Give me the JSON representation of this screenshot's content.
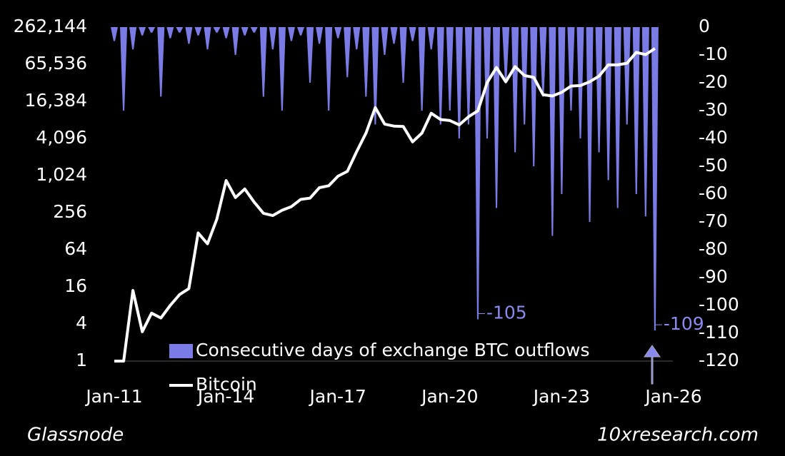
{
  "chart_data": {
    "type": "line",
    "x": [
      "2011-01",
      "2011-04",
      "2011-07",
      "2011-10",
      "2012-01",
      "2012-04",
      "2012-07",
      "2012-10",
      "2013-01",
      "2013-04",
      "2013-07",
      "2013-10",
      "2014-01",
      "2014-04",
      "2014-07",
      "2014-10",
      "2015-01",
      "2015-04",
      "2015-07",
      "2015-10",
      "2016-01",
      "2016-04",
      "2016-07",
      "2016-10",
      "2017-01",
      "2017-04",
      "2017-07",
      "2017-10",
      "2018-01",
      "2018-04",
      "2018-07",
      "2018-10",
      "2019-01",
      "2019-04",
      "2019-07",
      "2019-10",
      "2020-01",
      "2020-04",
      "2020-07",
      "2020-10",
      "2021-01",
      "2021-04",
      "2021-07",
      "2021-10",
      "2022-01",
      "2022-04",
      "2022-07",
      "2022-10",
      "2023-01",
      "2023-04",
      "2023-07",
      "2023-10",
      "2024-01",
      "2024-04",
      "2024-07",
      "2024-10",
      "2025-01",
      "2025-04",
      "2025-07"
    ],
    "series": [
      {
        "name": "Consecutive days of exchange BTC outflows",
        "type": "bar",
        "axis": "y2",
        "color": "#7b7be6",
        "values": [
          -5,
          -30,
          -8,
          -3,
          -2,
          -25,
          -4,
          -2,
          -6,
          -3,
          -8,
          -2,
          -4,
          -10,
          -3,
          -2,
          -25,
          -8,
          -30,
          -5,
          -3,
          -20,
          -6,
          -30,
          -4,
          -18,
          -8,
          -25,
          -35,
          -10,
          -6,
          -20,
          -5,
          -30,
          -8,
          -35,
          -30,
          -40,
          -35,
          -105,
          -40,
          -65,
          -20,
          -45,
          -35,
          -50,
          -25,
          -75,
          -60,
          -30,
          -40,
          -70,
          -45,
          -55,
          -65,
          -35,
          -60,
          -68,
          -109
        ]
      },
      {
        "name": "Bitcoin",
        "type": "line",
        "color": "#ffffff",
        "values": [
          1,
          1,
          14,
          3,
          6,
          5,
          8,
          12,
          15,
          120,
          80,
          200,
          850,
          450,
          620,
          380,
          250,
          230,
          280,
          320,
          420,
          440,
          650,
          700,
          1000,
          1200,
          2500,
          5000,
          13000,
          7000,
          6500,
          6400,
          3600,
          5000,
          10500,
          8300,
          8000,
          6800,
          9200,
          11500,
          33000,
          58000,
          34000,
          60000,
          43000,
          40000,
          21000,
          20000,
          23000,
          29000,
          29500,
          34000,
          42000,
          64000,
          64000,
          68000,
          102000,
          94000,
          118000
        ]
      }
    ],
    "xlim": [
      "2011-01",
      "2026-01"
    ],
    "xticks": [
      {
        "value": "2011-01",
        "label": "Jan-11"
      },
      {
        "value": "2014-01",
        "label": "Jan-14"
      },
      {
        "value": "2017-01",
        "label": "Jan-17"
      },
      {
        "value": "2020-01",
        "label": "Jan-20"
      },
      {
        "value": "2023-01",
        "label": "Jan-23"
      },
      {
        "value": "2026-01",
        "label": "Jan-26"
      }
    ],
    "ylim": [
      1,
      262144
    ],
    "log_scale": true,
    "yticks": [
      1,
      4,
      16,
      64,
      256,
      {
        "value": 1024,
        "label": "1,024"
      },
      {
        "value": 4096,
        "label": "4,096"
      },
      {
        "value": 16384,
        "label": "16,384"
      },
      {
        "value": 65536,
        "label": "65,536"
      },
      {
        "value": 262144,
        "label": "262,144"
      }
    ],
    "y2lim": [
      -120,
      0
    ],
    "y2ticks": [
      -120,
      -110,
      -100,
      -90,
      -80,
      -70,
      -60,
      -50,
      -40,
      -30,
      -20,
      -10,
      0
    ],
    "legend": "bottom",
    "annotations": [
      {
        "text": "-105",
        "x": "2020-10",
        "y": -105
      },
      {
        "text": "-109",
        "x": "2025-07",
        "y": -109
      }
    ],
    "source": "Glassnode",
    "credit": "10xresearch.com"
  }
}
